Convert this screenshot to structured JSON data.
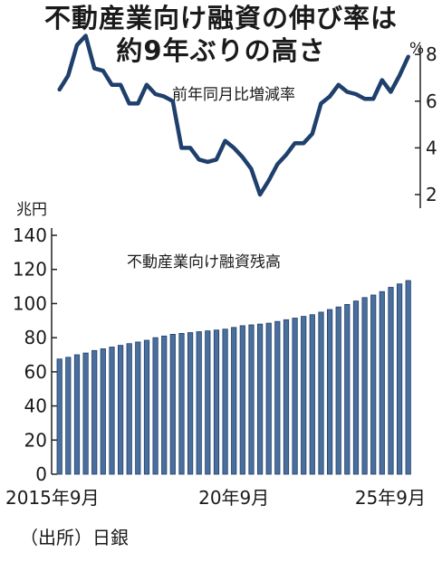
{
  "title_lines": [
    "不動産業向け融資の伸び率は",
    "約9年ぶりの高さ"
  ],
  "source": "（出所）日銀",
  "chart_data": [
    {
      "type": "line",
      "subtitle": "前年同月比増減率",
      "unit": "%",
      "ylim": [
        2,
        8.2
      ],
      "yticks": [
        2,
        4,
        6,
        8
      ],
      "axis_side": "right",
      "x": [
        "2015-09",
        "2015-12",
        "2016-03",
        "2016-06",
        "2016-09",
        "2016-12",
        "2017-03",
        "2017-06",
        "2017-09",
        "2017-12",
        "2018-03",
        "2018-06",
        "2018-09",
        "2018-12",
        "2019-03",
        "2019-06",
        "2019-09",
        "2019-12",
        "2020-03",
        "2020-06",
        "2020-09",
        "2020-12",
        "2021-03",
        "2021-06",
        "2021-09",
        "2021-12",
        "2022-03",
        "2022-06",
        "2022-09",
        "2022-12",
        "2023-03",
        "2023-06",
        "2023-09",
        "2023-12",
        "2024-03",
        "2024-06",
        "2024-09",
        "2024-12",
        "2025-03",
        "2025-06",
        "2025-09"
      ],
      "values": [
        6.5,
        7.1,
        8.4,
        8.8,
        7.4,
        7.3,
        6.7,
        6.7,
        5.9,
        5.9,
        6.7,
        6.3,
        6.2,
        6.0,
        4.0,
        4.0,
        3.5,
        3.4,
        3.5,
        4.3,
        4.0,
        3.6,
        3.1,
        2.0,
        2.6,
        3.3,
        3.7,
        4.2,
        4.2,
        4.6,
        5.9,
        6.2,
        6.7,
        6.4,
        6.3,
        6.1,
        6.1,
        6.9,
        6.4,
        7.1,
        7.9
      ]
    },
    {
      "type": "bar",
      "subtitle": "不動産業向け融資残高",
      "unit": "兆円",
      "ylim": [
        0,
        140
      ],
      "yticks": [
        0,
        20,
        40,
        60,
        80,
        100,
        120,
        140
      ],
      "axis_side": "left",
      "grid": false,
      "x_tick_labels": [
        {
          "label": "2015年9月",
          "index": 0
        },
        {
          "label": "20年9月",
          "index": 20
        },
        {
          "label": "25年9月",
          "index": 40
        }
      ],
      "values": [
        67.5,
        68.5,
        70,
        71,
        72.5,
        73.5,
        74.5,
        75.5,
        76.5,
        77.5,
        78.5,
        80,
        81,
        82,
        82.5,
        83,
        83.5,
        84,
        84.5,
        85,
        86,
        87,
        87.5,
        88,
        88.5,
        89.5,
        90.5,
        91.5,
        92.5,
        93.5,
        95,
        96.5,
        98,
        99.5,
        101.5,
        103.5,
        105,
        107,
        109.5,
        111.5,
        113.5
      ]
    }
  ]
}
